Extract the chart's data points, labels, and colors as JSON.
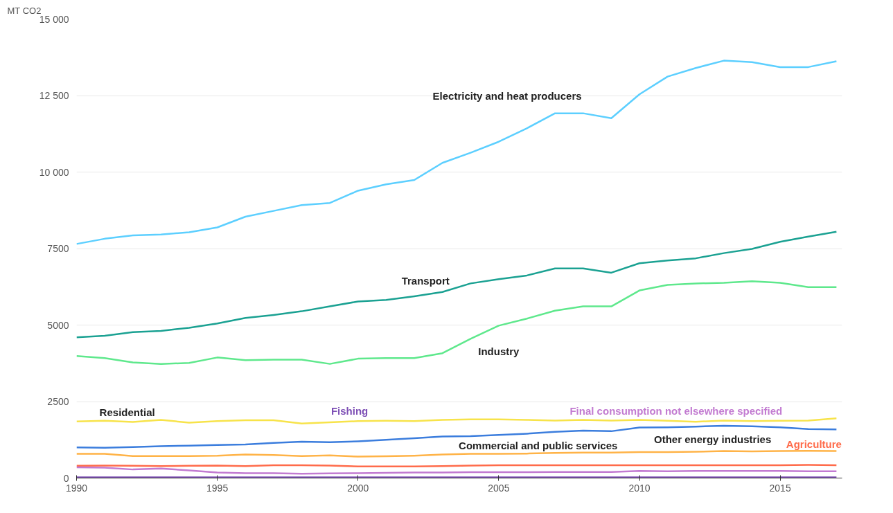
{
  "chart_data": {
    "type": "line",
    "ylabel": "MT CO2",
    "x": [
      1990,
      1991,
      1992,
      1993,
      1994,
      1995,
      1996,
      1997,
      1998,
      1999,
      2000,
      2001,
      2002,
      2003,
      2004,
      2005,
      2006,
      2007,
      2008,
      2009,
      2010,
      2011,
      2012,
      2013,
      2014,
      2015,
      2016,
      2017
    ],
    "series": [
      {
        "name": "Electricity and heat producers",
        "color": "#5ccfff",
        "values": [
          7650,
          7820,
          7930,
          7960,
          8030,
          8190,
          8540,
          8730,
          8920,
          8990,
          9390,
          9600,
          9740,
          10300,
          10630,
          10990,
          11430,
          11920,
          11920,
          11760,
          12540,
          13120,
          13400,
          13640,
          13590,
          13430,
          13430,
          13620
        ]
      },
      {
        "name": "Transport",
        "color": "#1aa192",
        "values": [
          4600,
          4650,
          4770,
          4810,
          4910,
          5050,
          5230,
          5330,
          5450,
          5610,
          5770,
          5820,
          5940,
          6080,
          6360,
          6500,
          6620,
          6850,
          6850,
          6710,
          7020,
          7110,
          7180,
          7350,
          7490,
          7720,
          7890,
          8050
        ]
      },
      {
        "name": "Industry",
        "color": "#5ee88c",
        "values": [
          3990,
          3920,
          3780,
          3730,
          3760,
          3940,
          3850,
          3870,
          3870,
          3730,
          3900,
          3920,
          3920,
          4080,
          4550,
          4980,
          5210,
          5470,
          5610,
          5610,
          6130,
          6310,
          6360,
          6380,
          6430,
          6380,
          6240,
          6240
        ]
      },
      {
        "name": "Residential",
        "color": "#f7e34a",
        "values": [
          1850,
          1870,
          1830,
          1900,
          1810,
          1860,
          1890,
          1890,
          1780,
          1820,
          1860,
          1870,
          1860,
          1900,
          1920,
          1920,
          1900,
          1880,
          1900,
          1880,
          1900,
          1870,
          1840,
          1880,
          1860,
          1870,
          1880,
          1950
        ]
      },
      {
        "name": "Other energy industries",
        "color": "#3b7ddd",
        "values": [
          1000,
          990,
          1010,
          1040,
          1060,
          1080,
          1100,
          1150,
          1190,
          1170,
          1200,
          1250,
          1300,
          1360,
          1370,
          1410,
          1450,
          1510,
          1550,
          1530,
          1650,
          1660,
          1680,
          1710,
          1690,
          1660,
          1600,
          1590
        ]
      },
      {
        "name": "Commercial and public services",
        "color": "#ffb347",
        "values": [
          790,
          790,
          720,
          720,
          720,
          730,
          770,
          750,
          720,
          740,
          700,
          710,
          730,
          770,
          790,
          790,
          800,
          820,
          830,
          830,
          850,
          850,
          860,
          880,
          870,
          880,
          890,
          880
        ]
      },
      {
        "name": "Agriculture",
        "color": "#ff6b4a",
        "values": [
          400,
          410,
          400,
          390,
          400,
          410,
          390,
          420,
          420,
          410,
          380,
          380,
          380,
          390,
          410,
          420,
          420,
          420,
          420,
          420,
          420,
          420,
          420,
          420,
          420,
          420,
          430,
          420
        ]
      },
      {
        "name": "Final consumption not elsewhere specified",
        "color": "#c27bd1",
        "values": [
          350,
          340,
          280,
          310,
          250,
          180,
          160,
          160,
          140,
          150,
          160,
          170,
          180,
          180,
          190,
          190,
          190,
          200,
          200,
          200,
          230,
          220,
          230,
          230,
          230,
          230,
          220,
          220
        ]
      },
      {
        "name": "Fishing",
        "color": "#7d4fb5",
        "values": [
          20,
          20,
          20,
          20,
          20,
          20,
          20,
          20,
          20,
          20,
          20,
          20,
          20,
          20,
          20,
          20,
          20,
          20,
          20,
          20,
          20,
          20,
          20,
          20,
          20,
          20,
          20,
          20
        ]
      }
    ],
    "xlim": [
      1990,
      2017.2
    ],
    "ylim": [
      0,
      15000
    ],
    "xticks": [
      1990,
      1995,
      2000,
      2005,
      2010,
      2015
    ],
    "yticks": [
      {
        "value": 0,
        "label": "0"
      },
      {
        "value": 2500,
        "label": "2500"
      },
      {
        "value": 5000,
        "label": "5000"
      },
      {
        "value": 7500,
        "label": "7500"
      },
      {
        "value": 10000,
        "label": "10 000"
      },
      {
        "value": 12500,
        "label": "12 500"
      },
      {
        "value": 15000,
        "label": "15 000"
      }
    ],
    "grid": "y",
    "marker": "none",
    "line_style": "solid"
  }
}
